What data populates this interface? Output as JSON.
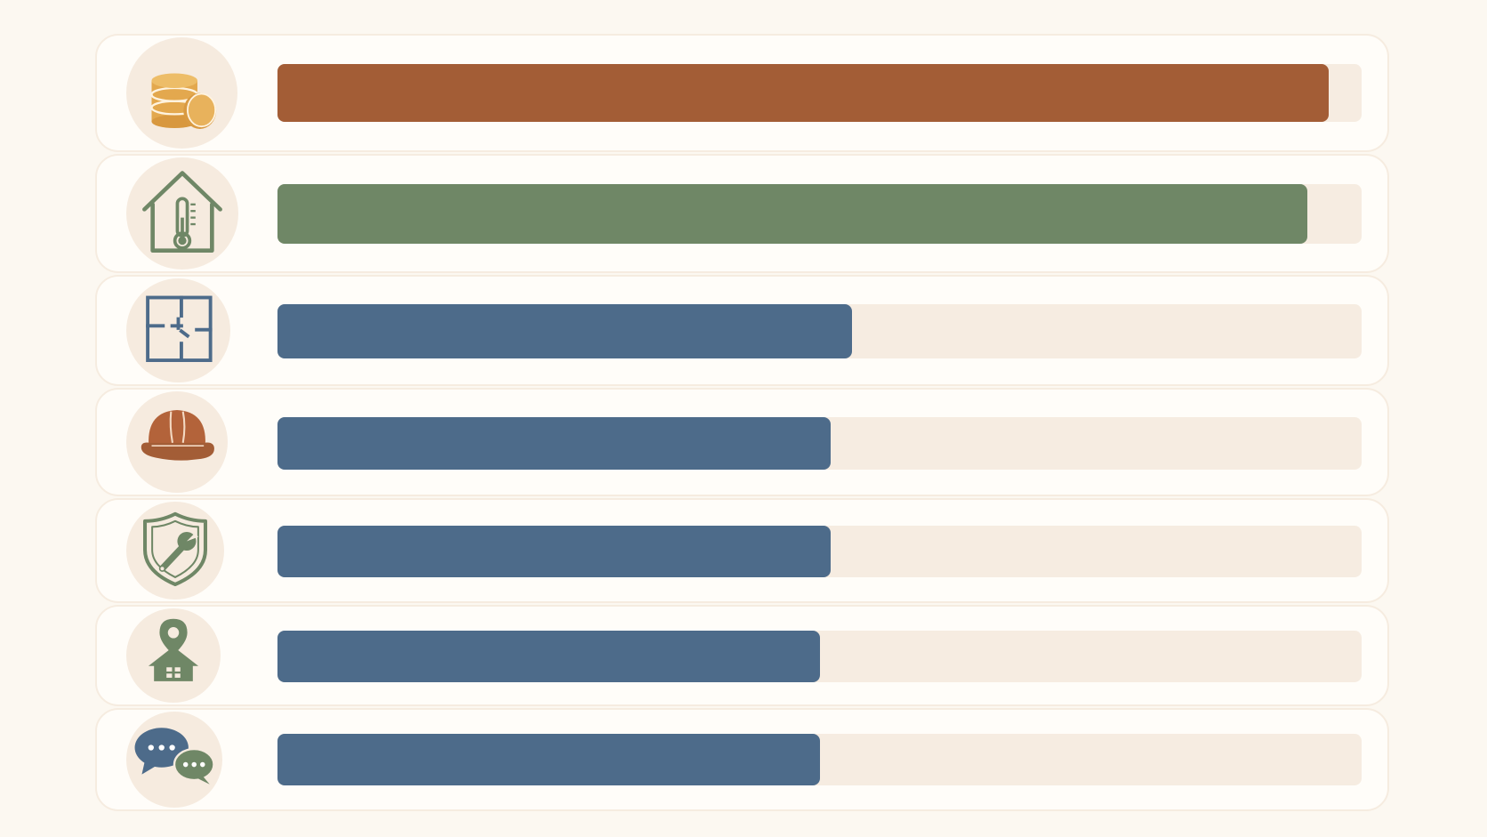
{
  "chart_data": {
    "type": "bar",
    "orientation": "horizontal",
    "title": "",
    "xlabel": "",
    "ylabel": "",
    "xlim": [
      0,
      100
    ],
    "grid": false,
    "legend": "none",
    "categories": [
      {
        "icon": "coins-icon",
        "value": 97,
        "color": "#a35d36"
      },
      {
        "icon": "house-thermometer-icon",
        "value": 95,
        "color": "#6f8766"
      },
      {
        "icon": "floor-plan-icon",
        "value": 53,
        "color": "#4d6b8a"
      },
      {
        "icon": "hard-hat-icon",
        "value": 51,
        "color": "#4d6b8a"
      },
      {
        "icon": "shield-wrench-icon",
        "value": 51,
        "color": "#4d6b8a"
      },
      {
        "icon": "location-house-icon",
        "value": 50,
        "color": "#4d6b8a"
      },
      {
        "icon": "chat-bubbles-icon",
        "value": 50,
        "color": "#4d6b8a"
      }
    ]
  }
}
